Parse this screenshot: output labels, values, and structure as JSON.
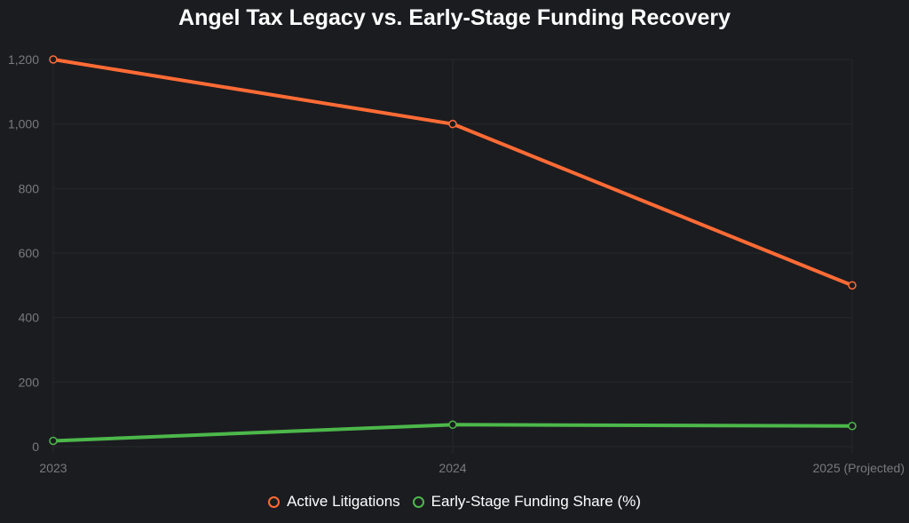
{
  "chart_data": {
    "type": "line",
    "title": "Angel Tax Legacy vs. Early-Stage Funding Recovery",
    "categories": [
      "2023",
      "2024",
      "2025 (Projected)"
    ],
    "series": [
      {
        "name": "Active Litigations",
        "values": [
          1200,
          1000,
          500
        ],
        "color": "#ff6b35"
      },
      {
        "name": "Early-Stage Funding Share (%)",
        "values": [
          18,
          68,
          64
        ],
        "color": "#4cb84a"
      }
    ],
    "ylim": [
      0,
      1200
    ],
    "yticks": [
      0,
      200,
      400,
      600,
      800,
      1000,
      1200
    ],
    "ytick_labels": [
      "0",
      "200",
      "400",
      "600",
      "800",
      "1,000",
      "1,200"
    ],
    "grid": true,
    "legend": "bottom"
  }
}
